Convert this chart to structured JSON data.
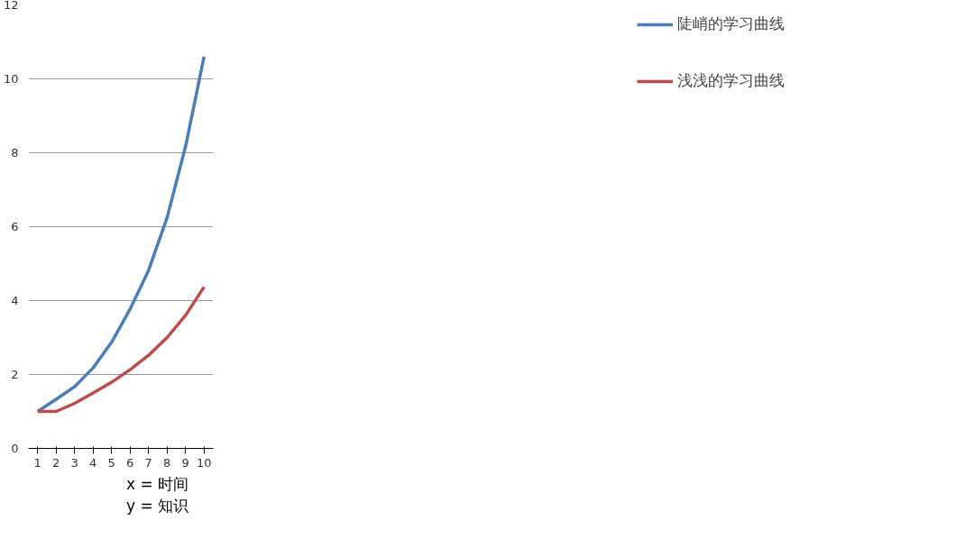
{
  "chart_data": {
    "type": "line",
    "categories": [
      "1",
      "2",
      "3",
      "4",
      "5",
      "6",
      "7",
      "8",
      "9",
      "10"
    ],
    "series": [
      {
        "name": "陡峭的学习曲线",
        "color": "#4a7ebb",
        "values": [
          1.0,
          1.33,
          1.67,
          2.18,
          2.87,
          3.77,
          4.82,
          6.24,
          8.17,
          10.6
        ]
      },
      {
        "name": "浅浅的学习曲线",
        "color": "#be4b48",
        "values": [
          1.0,
          1.0,
          1.22,
          1.5,
          1.79,
          2.13,
          2.52,
          3.0,
          3.6,
          4.37
        ]
      }
    ],
    "ylim": [
      0,
      12
    ],
    "yticks": [
      0,
      2,
      4,
      6,
      8,
      10,
      12
    ],
    "grid": "y",
    "legend": "right",
    "marker": "none",
    "line_style": "solid",
    "annotations": [
      "x = 时间",
      "y = 知识"
    ]
  }
}
